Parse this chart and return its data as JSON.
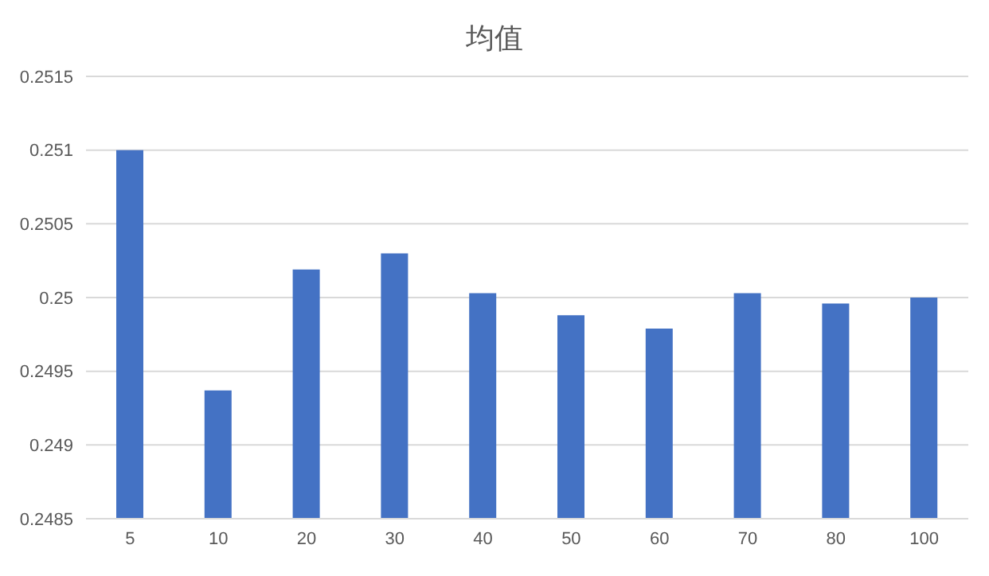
{
  "chart_data": {
    "type": "bar",
    "title": "均值",
    "categories": [
      "5",
      "10",
      "20",
      "30",
      "40",
      "50",
      "60",
      "70",
      "80",
      "100"
    ],
    "values": [
      0.251,
      0.24937,
      0.25019,
      0.2503,
      0.25003,
      0.24988,
      0.24979,
      0.25003,
      0.24996,
      0.25
    ],
    "color": "#4472c4",
    "ylim": [
      0.2485,
      0.2515
    ],
    "yticks": [
      0.2485,
      0.249,
      0.2495,
      0.25,
      0.2505,
      0.251,
      0.2515
    ],
    "grid": "y"
  }
}
